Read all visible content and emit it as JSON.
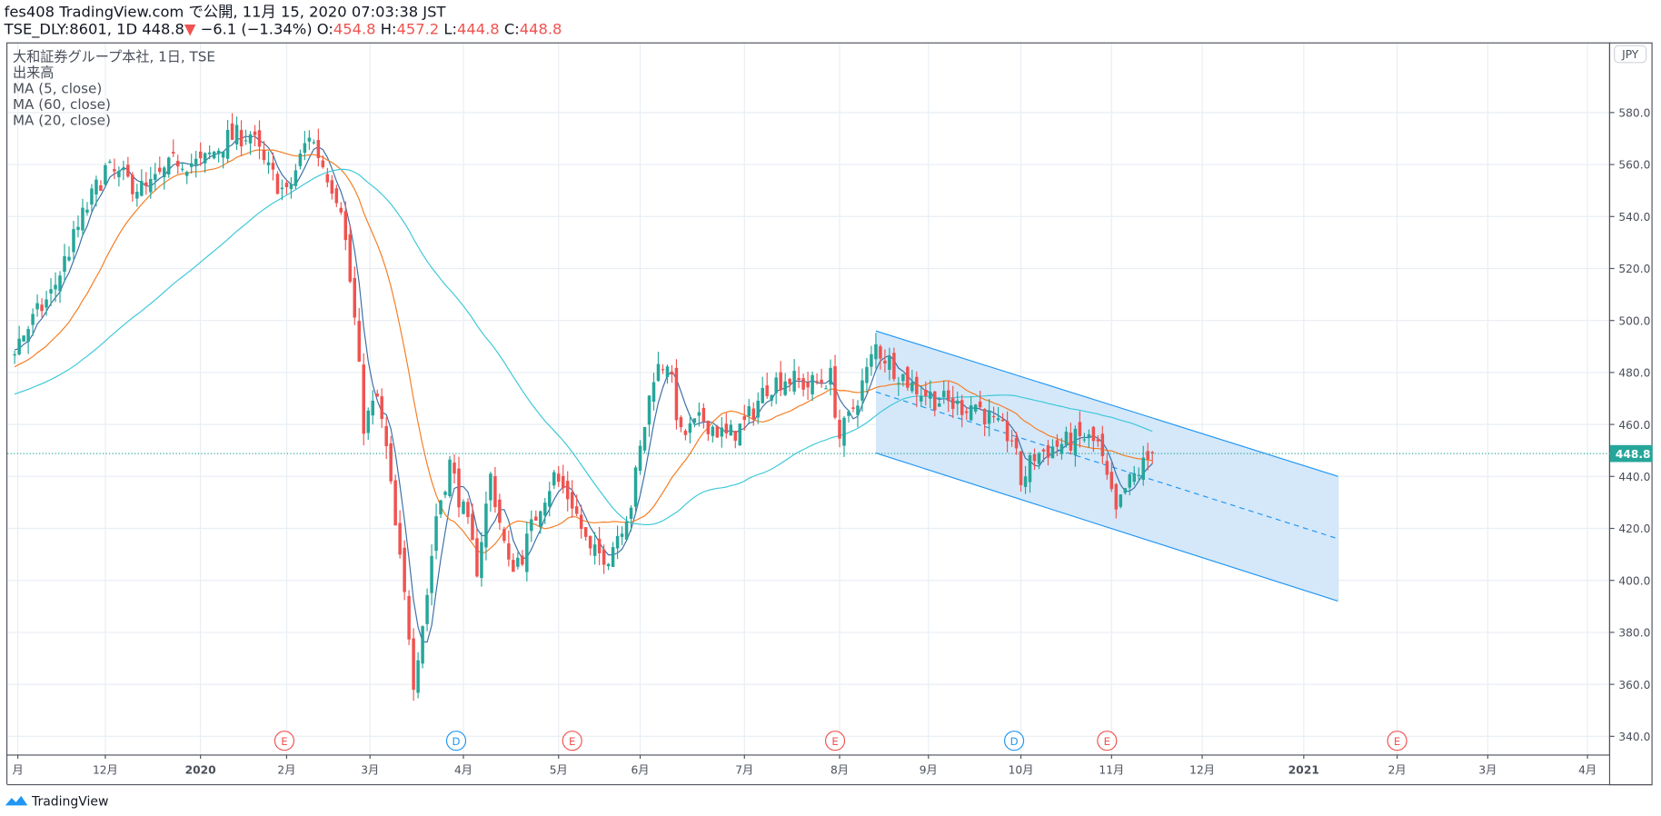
{
  "header": {
    "line1": "fes408 TradingView.com で公開, 11月 15, 2020 07:03:38 JST",
    "symbol": "TSE_DLY:8601, 1D 448.8",
    "change": " −6.1 (−1.34%) O:",
    "open": "454.8",
    "h_label": " H:",
    "high": "457.2",
    "l_label": " L:",
    "low": "444.8",
    "c_label": " C:",
    "close": "448.8"
  },
  "legend": [
    "大和証券グループ本社, 1日, TSE",
    "出来高",
    "MA (5, close)",
    "MA (60, close)",
    "MA (20, close)"
  ],
  "currency": "JPY",
  "last_price_label": "448.8",
  "footer_logo": "TradingView",
  "colors": {
    "up": "#26a69a",
    "down": "#ef5350",
    "ma5": "#3a6ea5",
    "ma20": "#f57c21",
    "ma60": "#3cc8d8",
    "channel": "#2196f3",
    "channel_fill": "#cfe5f9",
    "grid": "#e8eef3"
  },
  "chart_data": {
    "type": "candlestick",
    "title": "大和証券グループ本社, 1日, TSE",
    "ylim": [
      333,
      607
    ],
    "xlim_days": [
      -1.6,
      352
    ],
    "y_ticks": [
      580,
      560,
      540,
      520,
      500,
      480,
      460,
      440,
      420,
      400,
      380,
      360,
      340
    ],
    "x_ticks": [
      {
        "day": 0.7,
        "label": "月"
      },
      {
        "day": 20,
        "label": "12月"
      },
      {
        "day": 41,
        "label": "2020"
      },
      {
        "day": 60,
        "label": "2月"
      },
      {
        "day": 78.4,
        "label": "3月"
      },
      {
        "day": 99,
        "label": "4月"
      },
      {
        "day": 120,
        "label": "5月"
      },
      {
        "day": 138,
        "label": "6月"
      },
      {
        "day": 161,
        "label": "7月"
      },
      {
        "day": 182,
        "label": "8月"
      },
      {
        "day": 201.6,
        "label": "9月"
      },
      {
        "day": 222,
        "label": "10月"
      },
      {
        "day": 242,
        "label": "11月"
      },
      {
        "day": 262,
        "label": "12月"
      },
      {
        "day": 284.4,
        "label": "2021"
      },
      {
        "day": 305,
        "label": "2月"
      },
      {
        "day": 325,
        "label": "3月"
      },
      {
        "day": 347,
        "label": "4月"
      }
    ],
    "close_path": [
      [
        -60,
        455
      ],
      [
        -30,
        470
      ],
      [
        -10,
        480
      ],
      [
        0,
        490
      ],
      [
        8,
        510
      ],
      [
        15,
        540
      ],
      [
        20,
        558
      ],
      [
        29,
        550
      ],
      [
        36,
        562
      ],
      [
        41,
        560
      ],
      [
        47,
        570
      ],
      [
        52,
        572
      ],
      [
        55,
        560
      ],
      [
        60,
        548
      ],
      [
        65,
        572
      ],
      [
        68,
        560
      ],
      [
        72,
        545
      ],
      [
        75,
        500
      ],
      [
        77,
        460
      ],
      [
        80,
        470
      ],
      [
        82,
        450
      ],
      [
        84,
        420
      ],
      [
        87,
        380
      ],
      [
        88,
        362
      ],
      [
        91,
        395
      ],
      [
        93,
        425
      ],
      [
        96,
        445
      ],
      [
        100,
        420
      ],
      [
        102,
        405
      ],
      [
        105,
        440
      ],
      [
        109,
        405
      ],
      [
        112,
        410
      ],
      [
        116,
        430
      ],
      [
        119,
        440
      ],
      [
        123,
        430
      ],
      [
        127,
        410
      ],
      [
        131,
        410
      ],
      [
        136,
        430
      ],
      [
        138,
        450
      ],
      [
        141,
        480
      ],
      [
        144,
        485
      ],
      [
        147,
        455
      ],
      [
        152,
        462
      ],
      [
        157,
        455
      ],
      [
        161,
        460
      ],
      [
        166,
        475
      ],
      [
        170,
        478
      ],
      [
        175,
        475
      ],
      [
        180,
        478
      ],
      [
        182,
        455
      ],
      [
        184,
        462
      ],
      [
        188,
        480
      ],
      [
        190,
        490
      ],
      [
        194,
        482
      ],
      [
        198,
        475
      ],
      [
        203,
        470
      ],
      [
        208,
        467
      ],
      [
        212,
        468
      ],
      [
        217,
        458
      ],
      [
        220,
        455
      ],
      [
        222,
        438
      ],
      [
        225,
        448
      ],
      [
        230,
        452
      ],
      [
        236,
        455
      ],
      [
        239,
        452
      ],
      [
        241,
        438
      ],
      [
        243,
        425
      ],
      [
        245,
        435
      ],
      [
        247,
        440
      ],
      [
        251,
        448.8
      ]
    ],
    "last_close": 448.8,
    "moving_averages": [
      {
        "name": "MA 5",
        "period": 5
      },
      {
        "name": "MA 20",
        "period": 20
      },
      {
        "name": "MA 60",
        "period": 60
      }
    ],
    "channel": {
      "start_day": 190,
      "end_day": 292,
      "upper": [
        496,
        440
      ],
      "lower": [
        449,
        392
      ]
    },
    "events": [
      {
        "day": 59.5,
        "label": "E"
      },
      {
        "day": 97.4,
        "label": "D"
      },
      {
        "day": 123,
        "label": "E"
      },
      {
        "day": 181,
        "label": "E"
      },
      {
        "day": 220.5,
        "label": "D"
      },
      {
        "day": 241,
        "label": "E"
      },
      {
        "day": 305,
        "label": "E"
      }
    ]
  }
}
